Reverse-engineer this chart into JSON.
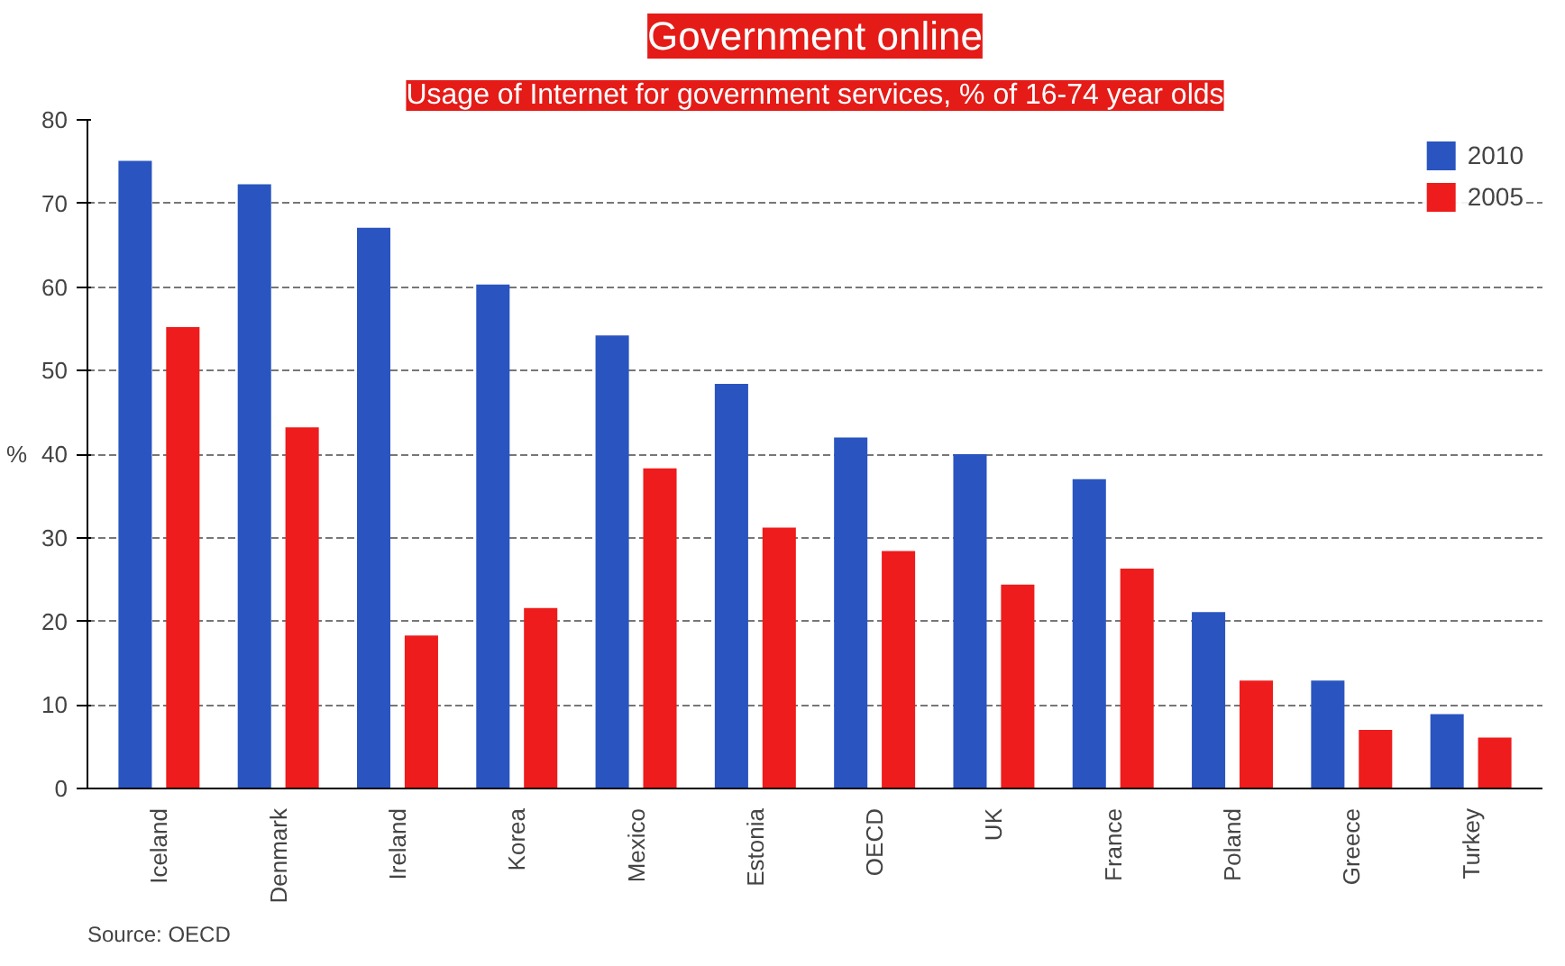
{
  "chart_data": {
    "type": "bar",
    "title": "Government online",
    "subtitle": "Usage of Internet for government services, % of 16-74 year olds",
    "ylabel": "%",
    "categories": [
      "Iceland",
      "Denmark",
      "Ireland",
      "Korea",
      "Mexico",
      "Estonia",
      "OECD",
      "UK",
      "France",
      "Poland",
      "Greece",
      "Turkey"
    ],
    "series": [
      {
        "name": "2010",
        "color": "#2a55c0",
        "values": [
          75.1,
          72.3,
          67.1,
          60.3,
          54.2,
          48.4,
          42.0,
          40.0,
          37.0,
          21.1,
          12.9,
          8.9
        ]
      },
      {
        "name": "2005",
        "color": "#ee1c1c",
        "values": [
          55.2,
          43.2,
          18.3,
          21.6,
          38.3,
          31.2,
          28.4,
          24.4,
          26.3,
          12.9,
          7.0,
          6.1
        ]
      }
    ],
    "ylim": [
      0,
      80
    ],
    "yticks": [
      0,
      10,
      20,
      30,
      40,
      50,
      60,
      70,
      80
    ],
    "grid": "y",
    "legend": "top right",
    "annotations": [
      "Source: OECD"
    ]
  }
}
